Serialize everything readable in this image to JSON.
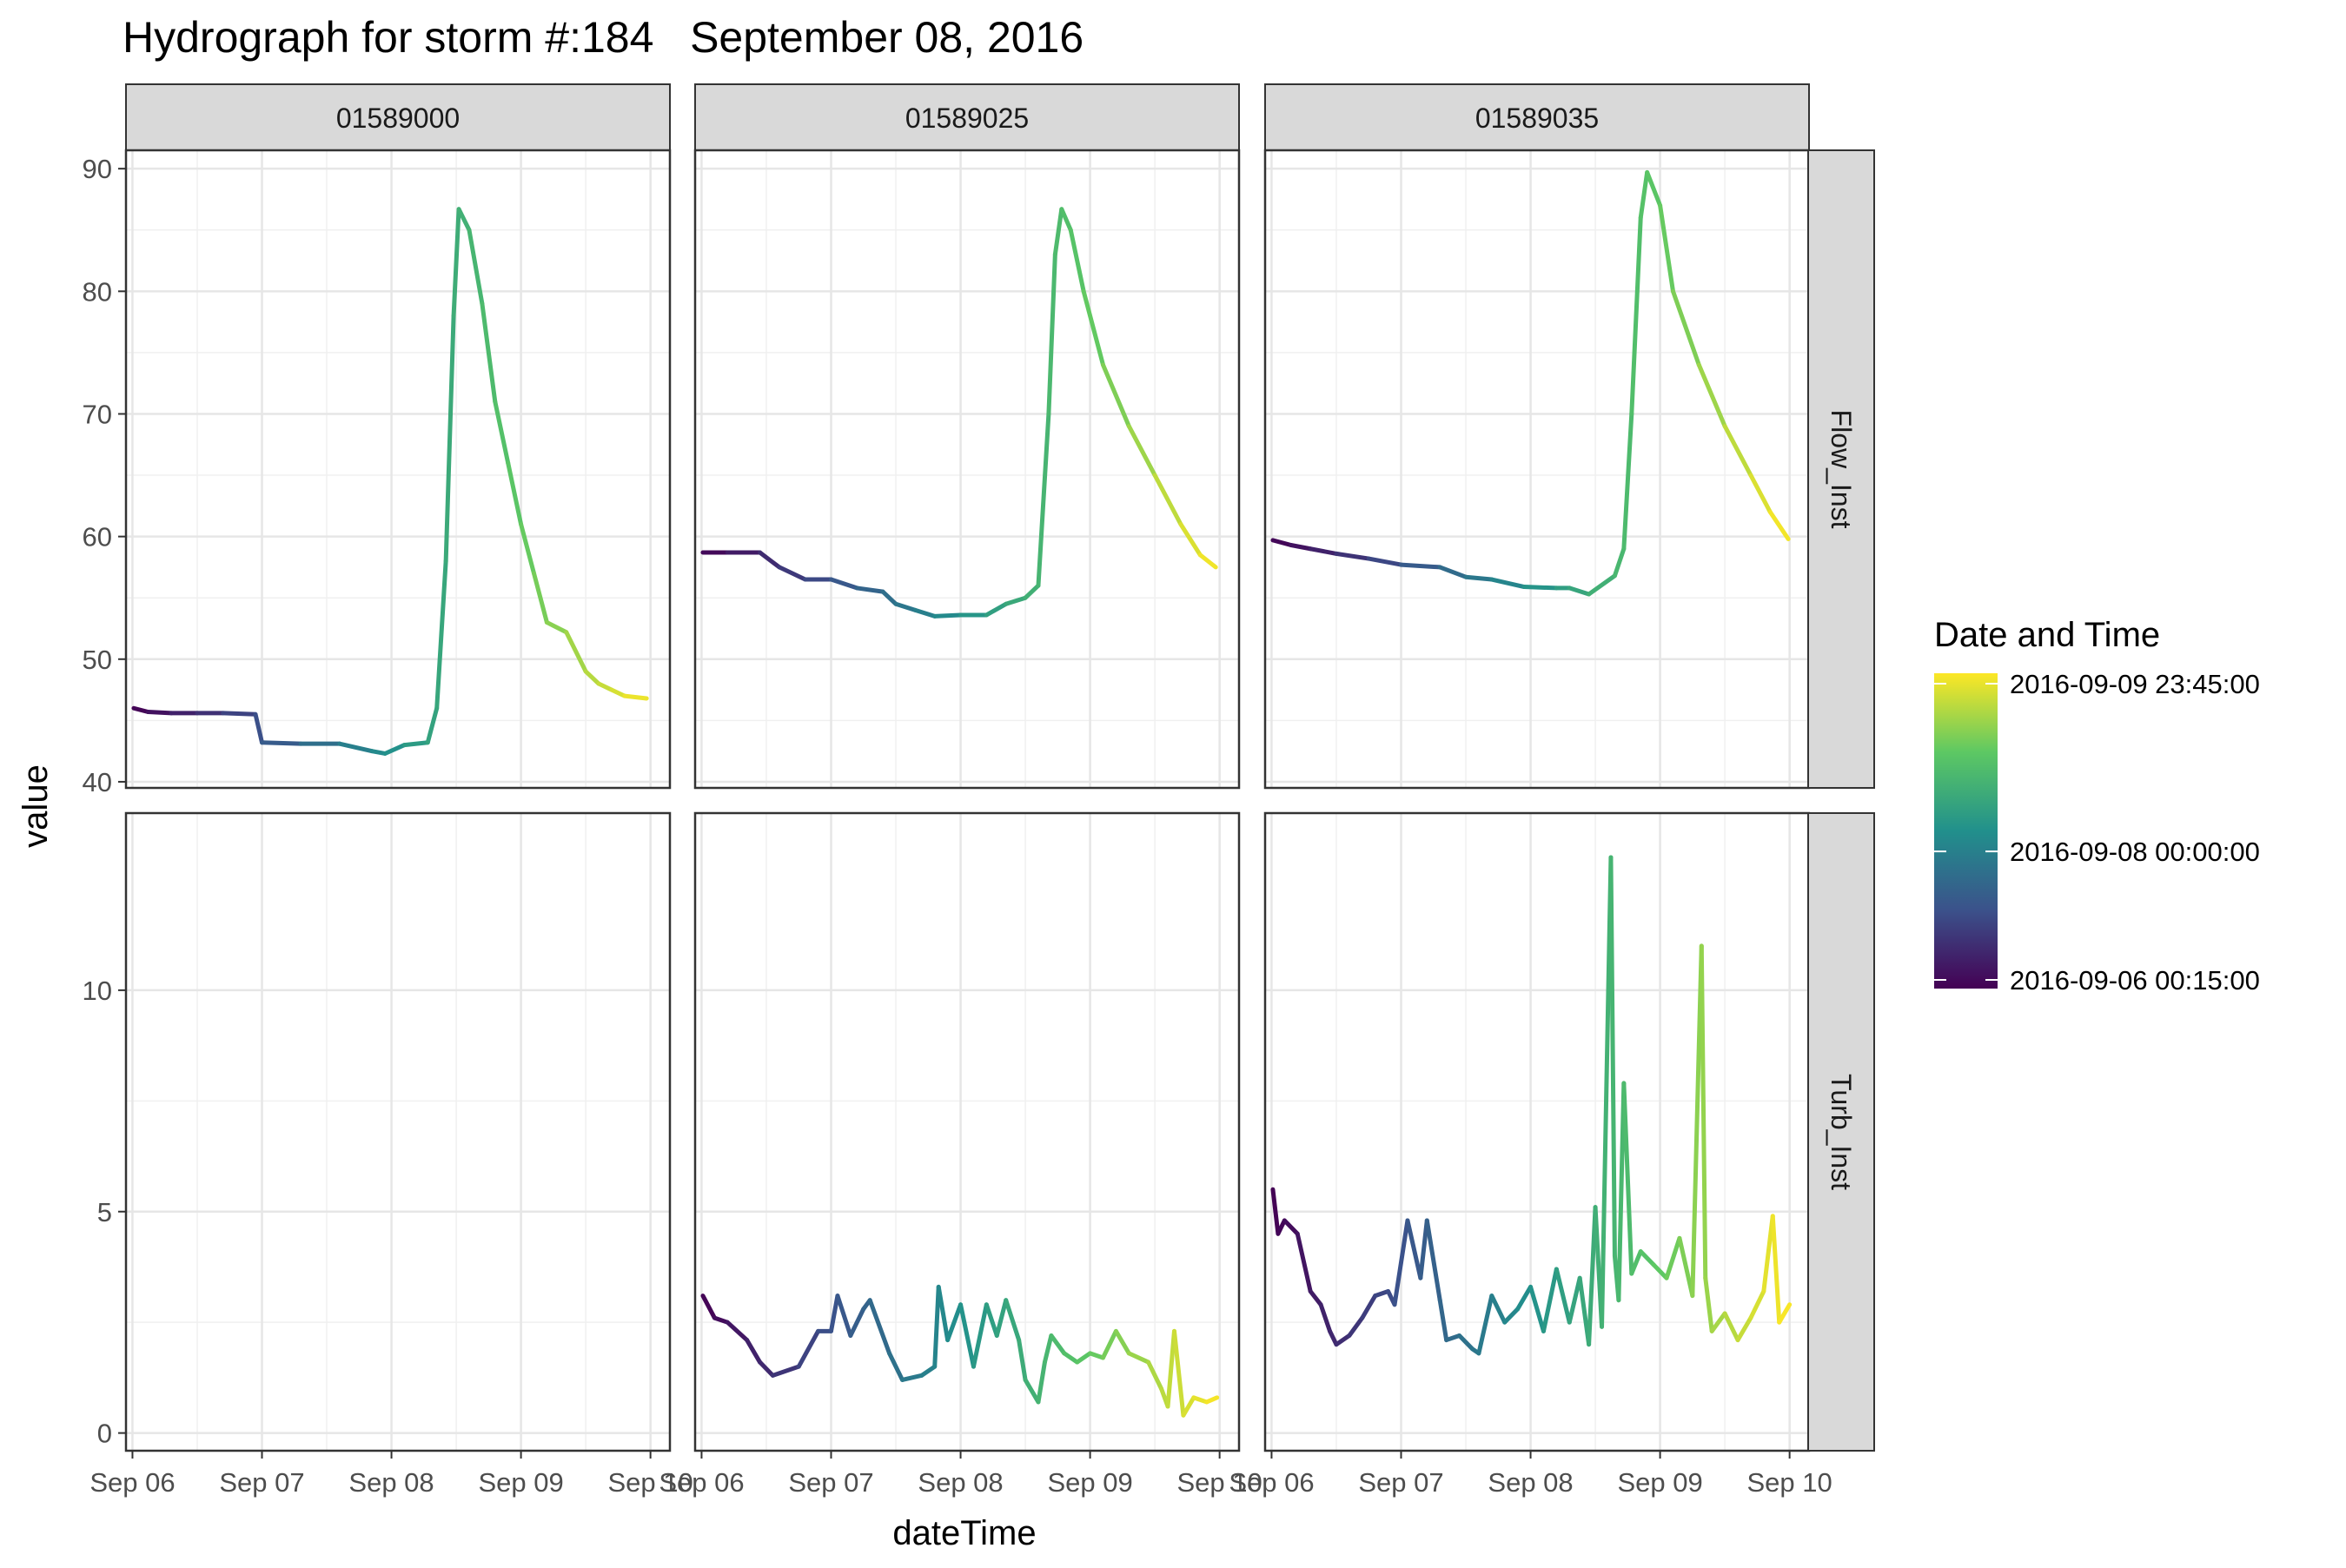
{
  "chart_data": {
    "type": "line",
    "title": "Hydrograph for storm #:184   September 08, 2016",
    "xlabel": "dateTime",
    "ylabel": "value",
    "x_ticks": [
      "Sep 06",
      "Sep 07",
      "Sep 08",
      "Sep 09",
      "Sep 10"
    ],
    "x_tick_days": [
      6,
      7,
      8,
      9,
      10
    ],
    "xlim_days": [
      5.95,
      10.15
    ],
    "columns": [
      "01589000",
      "01589025",
      "01589035"
    ],
    "rows": [
      {
        "name": "Flow_Inst",
        "ylim": [
          39.5,
          91.5
        ],
        "yticks": [
          40,
          50,
          60,
          70,
          80,
          90
        ]
      },
      {
        "name": "Turb_Inst",
        "ylim": [
          -0.4,
          14
        ],
        "yticks": [
          0,
          5,
          10
        ]
      }
    ],
    "legend": {
      "title": "Date and Time",
      "labels": [
        "2016-09-09 23:45:00",
        "2016-09-08 00:00:00",
        "2016-09-06 00:15:00"
      ],
      "colors": [
        "#440154",
        "#3b528b",
        "#21908c",
        "#5dc863",
        "#fde725"
      ],
      "placement": "right"
    },
    "panels": [
      {
        "column": "01589000",
        "row": "Flow_Inst",
        "x": [
          6.01,
          6.12,
          6.3,
          6.5,
          6.7,
          6.95,
          7.0,
          7.3,
          7.6,
          7.85,
          7.95,
          8.1,
          8.28,
          8.35,
          8.42,
          8.48,
          8.52,
          8.6,
          8.7,
          8.8,
          8.9,
          9.0,
          9.1,
          9.2,
          9.35,
          9.5,
          9.6,
          9.7,
          9.8,
          9.97
        ],
        "values": [
          46,
          45.7,
          45.6,
          45.6,
          45.6,
          45.5,
          43.2,
          43.1,
          43.1,
          42.5,
          42.3,
          43.0,
          43.2,
          46,
          58,
          78,
          86.7,
          85,
          79,
          71,
          66,
          61,
          57,
          53,
          52.2,
          49,
          48,
          47.5,
          47,
          46.8
        ]
      },
      {
        "column": "01589025",
        "row": "Flow_Inst",
        "x": [
          6.01,
          6.2,
          6.45,
          6.6,
          6.8,
          7.0,
          7.2,
          7.4,
          7.5,
          7.65,
          7.8,
          8.0,
          8.2,
          8.35,
          8.5,
          8.6,
          8.68,
          8.73,
          8.78,
          8.85,
          8.95,
          9.1,
          9.3,
          9.5,
          9.7,
          9.85,
          9.97
        ],
        "values": [
          58.7,
          58.7,
          58.7,
          57.5,
          56.5,
          56.5,
          55.8,
          55.5,
          54.5,
          54,
          53.5,
          53.6,
          53.6,
          54.5,
          55,
          56,
          70,
          83,
          86.7,
          85,
          80,
          74,
          69,
          65,
          61,
          58.5,
          57.5
        ]
      },
      {
        "column": "01589035",
        "row": "Flow_Inst",
        "x": [
          6.01,
          6.15,
          6.3,
          6.5,
          6.75,
          7.0,
          7.3,
          7.5,
          7.7,
          7.95,
          8.2,
          8.3,
          8.45,
          8.65,
          8.72,
          8.78,
          8.85,
          8.9,
          9.0,
          9.1,
          9.3,
          9.5,
          9.7,
          9.85,
          9.99
        ],
        "values": [
          59.7,
          59.3,
          59,
          58.6,
          58.2,
          57.7,
          57.5,
          56.7,
          56.5,
          55.9,
          55.8,
          55.8,
          55.3,
          56.8,
          59,
          70,
          86,
          89.7,
          87,
          80,
          74,
          69,
          65,
          62,
          59.8
        ]
      },
      {
        "column": "01589025",
        "row": "Turb_Inst",
        "x": [
          6.01,
          6.1,
          6.2,
          6.35,
          6.45,
          6.55,
          6.75,
          6.9,
          7.0,
          7.05,
          7.15,
          7.25,
          7.3,
          7.45,
          7.55,
          7.7,
          7.8,
          7.83,
          7.9,
          8.0,
          8.1,
          8.2,
          8.28,
          8.35,
          8.45,
          8.5,
          8.6,
          8.65,
          8.7,
          8.8,
          8.9,
          9.0,
          9.1,
          9.2,
          9.3,
          9.45,
          9.55,
          9.6,
          9.65,
          9.72,
          9.8,
          9.9,
          9.98
        ],
        "values": [
          3.1,
          2.6,
          2.5,
          2.1,
          1.6,
          1.3,
          1.5,
          2.3,
          2.3,
          3.1,
          2.2,
          2.8,
          3.0,
          1.8,
          1.2,
          1.3,
          1.5,
          3.3,
          2.1,
          2.9,
          1.5,
          2.9,
          2.2,
          3.0,
          2.1,
          1.2,
          0.7,
          1.6,
          2.2,
          1.8,
          1.6,
          1.8,
          1.7,
          2.3,
          1.8,
          1.6,
          1.0,
          0.6,
          2.3,
          0.4,
          0.8,
          0.7,
          0.8
        ]
      },
      {
        "column": "01589035",
        "row": "Turb_Inst",
        "x": [
          6.01,
          6.05,
          6.1,
          6.2,
          6.3,
          6.38,
          6.45,
          6.5,
          6.6,
          6.7,
          6.8,
          6.9,
          6.95,
          7.05,
          7.15,
          7.2,
          7.3,
          7.35,
          7.45,
          7.55,
          7.6,
          7.7,
          7.8,
          7.9,
          8.0,
          8.1,
          8.2,
          8.3,
          8.38,
          8.45,
          8.5,
          8.55,
          8.62,
          8.65,
          8.68,
          8.72,
          8.78,
          8.85,
          8.95,
          9.05,
          9.15,
          9.25,
          9.32,
          9.35,
          9.4,
          9.5,
          9.6,
          9.7,
          9.8,
          9.87,
          9.92,
          10.0
        ],
        "values": [
          5.5,
          4.5,
          4.8,
          4.5,
          3.2,
          2.9,
          2.3,
          2.0,
          2.2,
          2.6,
          3.1,
          3.2,
          2.9,
          4.8,
          3.5,
          4.8,
          3.0,
          2.1,
          2.2,
          1.9,
          1.8,
          3.1,
          2.5,
          2.8,
          3.3,
          2.3,
          3.7,
          2.5,
          3.5,
          2.0,
          5.1,
          2.4,
          13.0,
          4.0,
          3.0,
          7.9,
          3.6,
          4.1,
          3.8,
          3.5,
          4.4,
          3.1,
          11.0,
          3.5,
          2.3,
          2.7,
          2.1,
          2.6,
          3.2,
          4.9,
          2.5,
          2.9
        ]
      }
    ]
  }
}
